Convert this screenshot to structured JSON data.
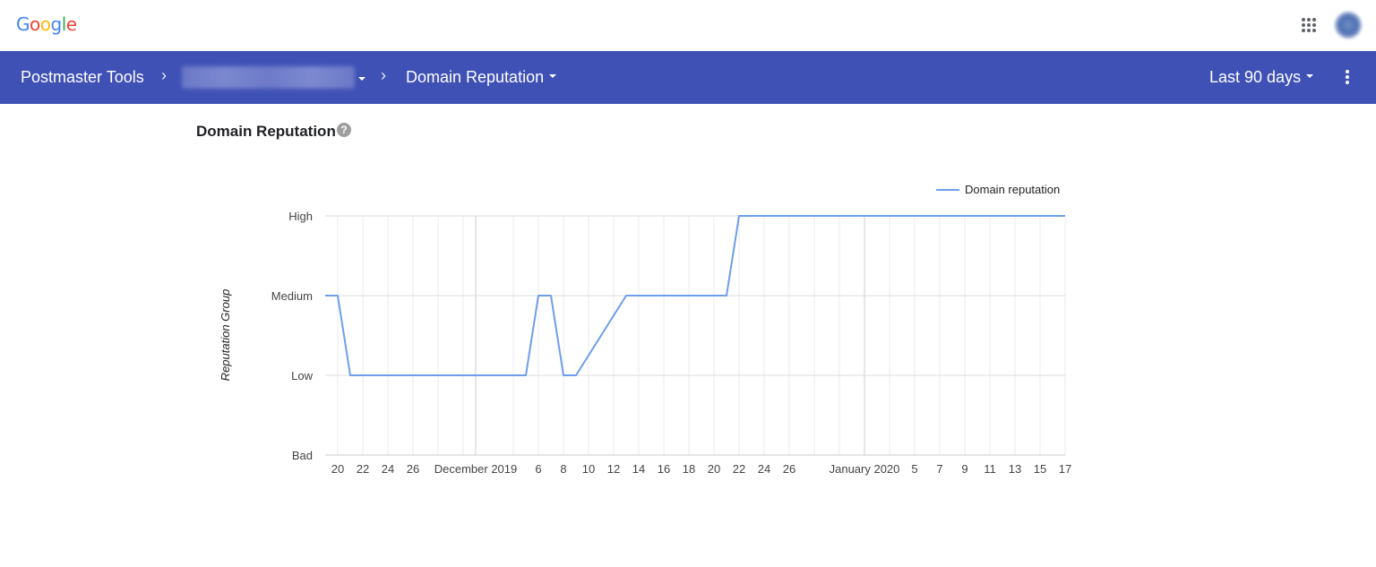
{
  "header": {
    "logo": "Google",
    "logo_letters": [
      {
        "ch": "G",
        "color": "#4285F4"
      },
      {
        "ch": "o",
        "color": "#EA4335"
      },
      {
        "ch": "o",
        "color": "#FBBC05"
      },
      {
        "ch": "g",
        "color": "#4285F4"
      },
      {
        "ch": "l",
        "color": "#34A853"
      },
      {
        "ch": "e",
        "color": "#EA4335"
      }
    ],
    "apps_icon": "apps-grid-icon",
    "avatar": "account-avatar"
  },
  "navbar": {
    "background": "#3f51b5",
    "breadcrumb": {
      "root": "Postmaster Tools",
      "domain": "",
      "report": "Domain Reputation"
    },
    "date_range": "Last 90 days",
    "more_icon": "more-vert-icon"
  },
  "main": {
    "title": "Domain Reputation",
    "help_icon": "?"
  },
  "chart_data": {
    "type": "line",
    "title": "Domain Reputation",
    "xlabel": "",
    "ylabel": "Reputation Group",
    "y_categories": [
      "Bad",
      "Low",
      "Medium",
      "High"
    ],
    "legend": [
      {
        "name": "Domain reputation",
        "color": "#6d9eeb"
      }
    ],
    "legend_position": "top-right",
    "grid": true,
    "x_tick_labels": [
      "20",
      "22",
      "24",
      "26",
      "December 2019",
      "6",
      "8",
      "10",
      "12",
      "14",
      "16",
      "18",
      "20",
      "22",
      "24",
      "26",
      "January 2020",
      "5",
      "7",
      "9",
      "11",
      "13",
      "15",
      "17"
    ],
    "x_range": [
      "2019-11-19",
      "2020-01-17"
    ],
    "series": [
      {
        "name": "Domain reputation",
        "points": [
          {
            "date": "2019-11-19",
            "value": "Medium"
          },
          {
            "date": "2019-11-20",
            "value": "Medium"
          },
          {
            "date": "2019-11-21",
            "value": "Low"
          },
          {
            "date": "2019-12-05",
            "value": "Low"
          },
          {
            "date": "2019-12-06",
            "value": "Medium"
          },
          {
            "date": "2019-12-07",
            "value": "Medium"
          },
          {
            "date": "2019-12-08",
            "value": "Low"
          },
          {
            "date": "2019-12-09",
            "value": "Low"
          },
          {
            "date": "2019-12-13",
            "value": "Medium"
          },
          {
            "date": "2019-12-21",
            "value": "Medium"
          },
          {
            "date": "2019-12-22",
            "value": "High"
          },
          {
            "date": "2020-01-17",
            "value": "High"
          }
        ]
      }
    ]
  }
}
